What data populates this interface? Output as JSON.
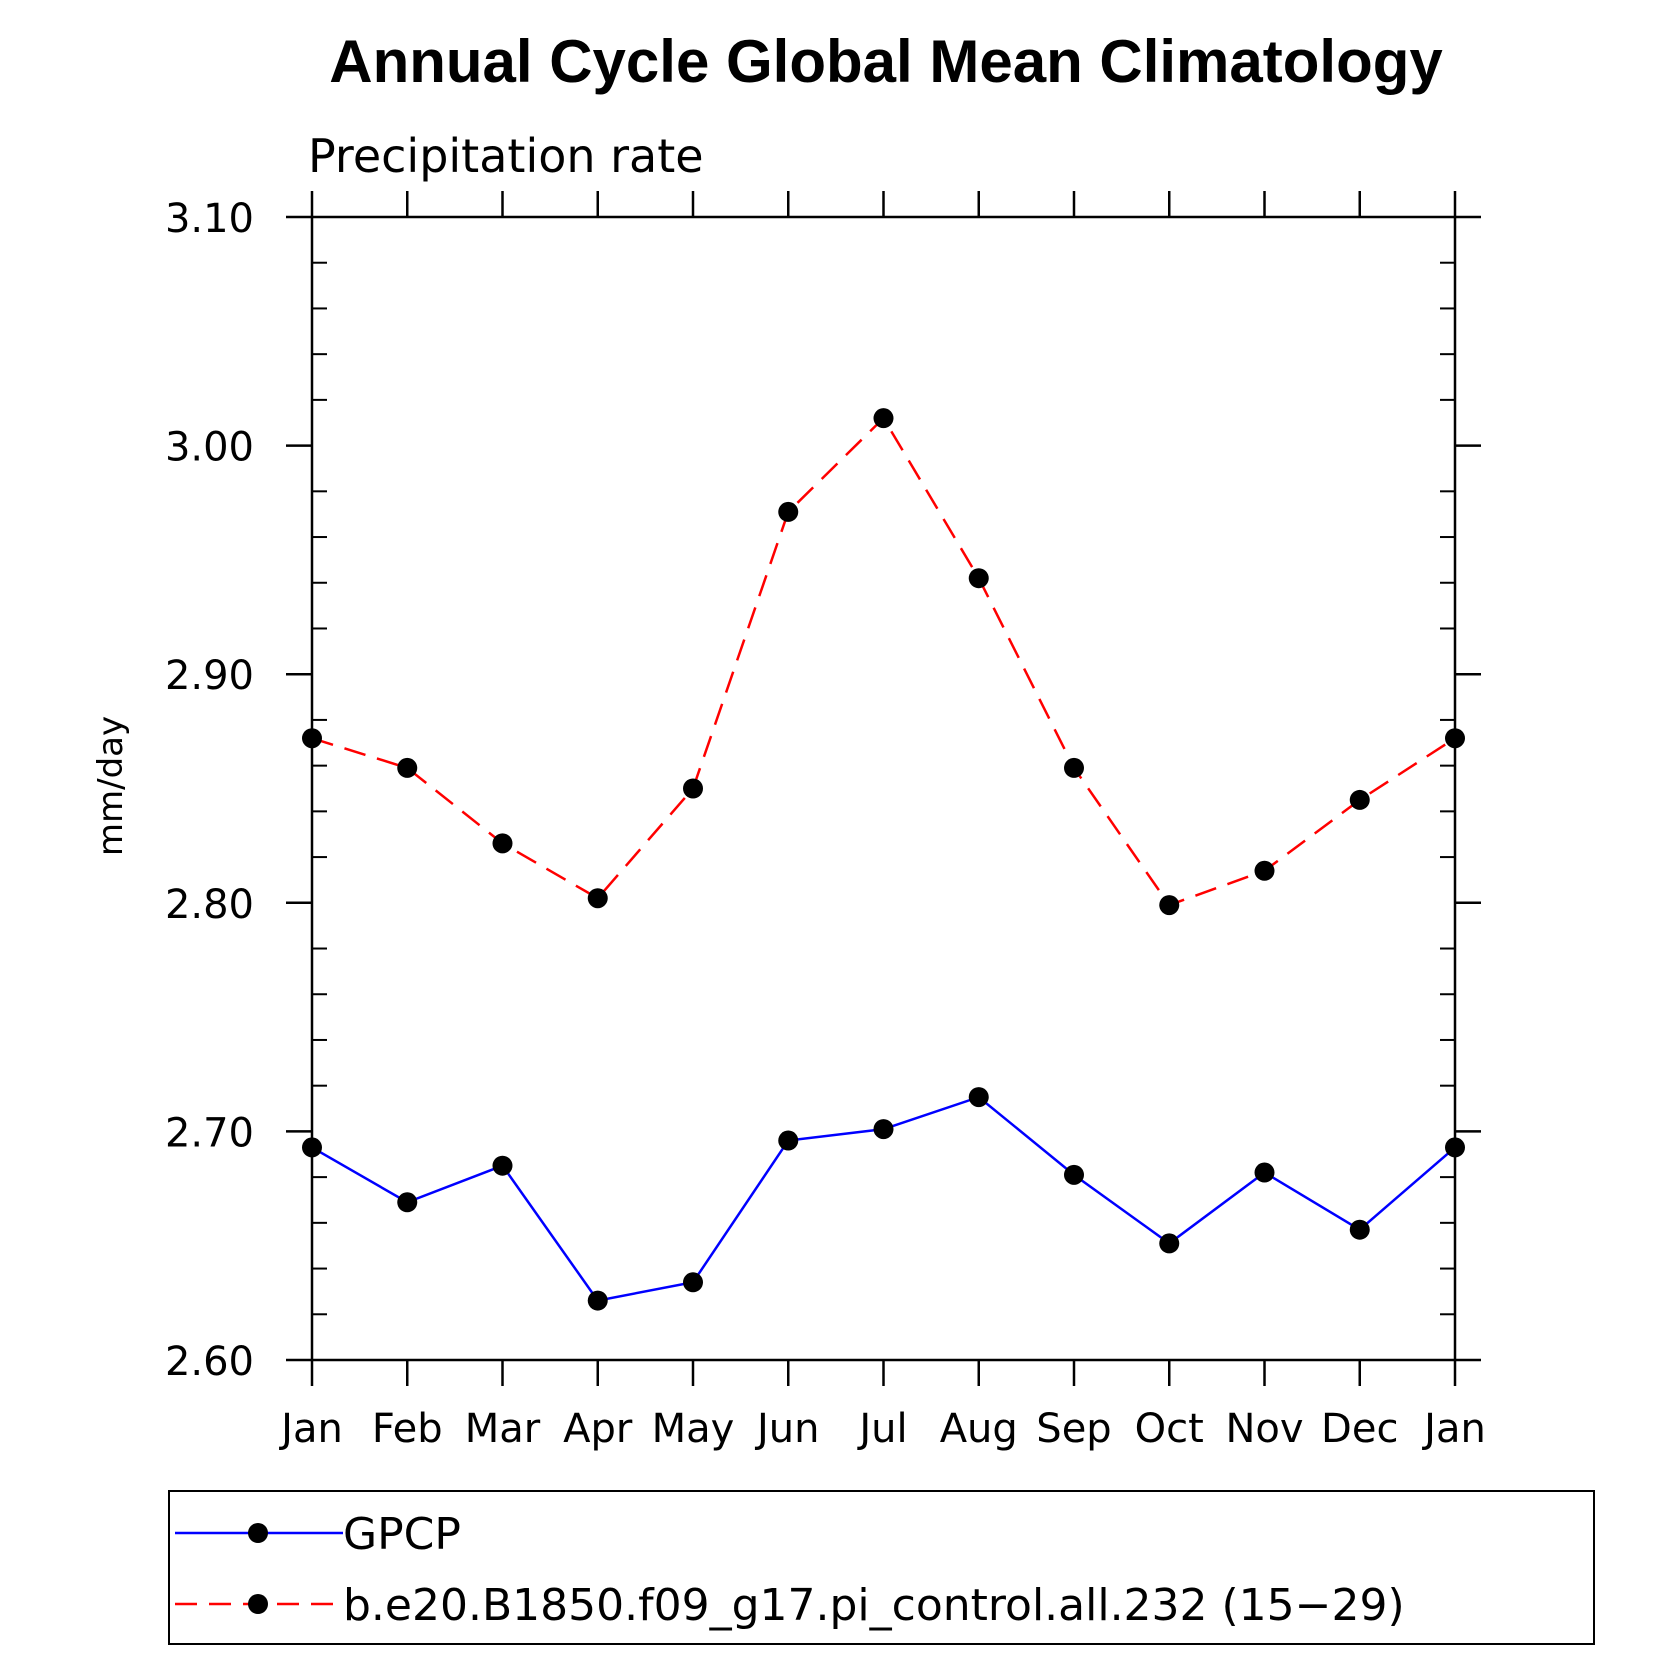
{
  "chart_data": {
    "type": "line",
    "title": "Annual Cycle Global Mean Climatology",
    "subtitle": "Precipitation rate",
    "xlabel": "",
    "ylabel": "mm/day",
    "categories": [
      "Jan",
      "Feb",
      "Mar",
      "Apr",
      "May",
      "Jun",
      "Jul",
      "Aug",
      "Sep",
      "Oct",
      "Nov",
      "Dec",
      "Jan"
    ],
    "ylim": [
      2.6,
      3.1
    ],
    "yticks": [
      "2.60",
      "2.70",
      "2.80",
      "2.90",
      "3.00",
      "3.10"
    ],
    "series": [
      {
        "name": "GPCP",
        "color": "#0000ff",
        "line_style": "solid",
        "marker": "filled-circle",
        "values": [
          2.693,
          2.669,
          2.685,
          2.626,
          2.634,
          2.696,
          2.701,
          2.715,
          2.681,
          2.651,
          2.682,
          2.657,
          2.693
        ]
      },
      {
        "name": "b.e20.B1850.f09_g17.pi_control.all.232 (15−29)",
        "color": "#ff0000",
        "line_style": "dashed",
        "marker": "filled-circle",
        "values": [
          2.872,
          2.859,
          2.826,
          2.802,
          2.85,
          2.971,
          3.012,
          2.942,
          2.859,
          2.799,
          2.814,
          2.845,
          2.872
        ]
      }
    ],
    "grid": false,
    "legend_position": "bottom"
  }
}
